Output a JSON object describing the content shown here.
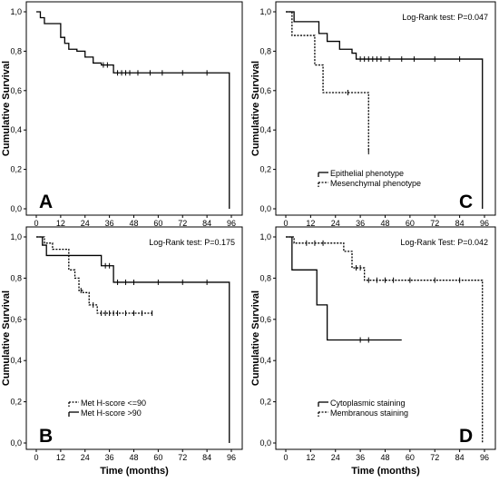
{
  "chart_data": [
    {
      "panel": "A",
      "type": "line",
      "title": "",
      "xlabel": "Time (months)",
      "ylabel": "Cumulative Survival",
      "xlim": [
        0,
        96
      ],
      "ylim": [
        0,
        1
      ],
      "x_ticks": [
        0,
        12,
        24,
        36,
        48,
        60,
        72,
        84,
        96
      ],
      "y_ticks": [
        0,
        0.2,
        0.4,
        0.6,
        0.8,
        1.0
      ],
      "y_tick_labels": [
        "0,0",
        "0,2",
        "0,4",
        "0,6",
        "0,8",
        "1,0"
      ],
      "annotation": "",
      "legend": [],
      "series": [
        {
          "dash": "solid",
          "x": [
            0,
            2,
            4,
            6,
            12,
            14,
            16,
            20,
            24,
            28,
            32,
            34,
            38,
            95,
            95
          ],
          "y": [
            1.0,
            0.97,
            0.94,
            0.94,
            0.87,
            0.84,
            0.81,
            0.8,
            0.77,
            0.74,
            0.73,
            0.73,
            0.69,
            0.69,
            0.0
          ],
          "censored": [
            {
              "x": 33,
              "y": 0.73
            },
            {
              "x": 35,
              "y": 0.73
            },
            {
              "x": 40,
              "y": 0.69
            },
            {
              "x": 42,
              "y": 0.69
            },
            {
              "x": 44,
              "y": 0.69
            },
            {
              "x": 46,
              "y": 0.69
            },
            {
              "x": 50,
              "y": 0.69
            },
            {
              "x": 56,
              "y": 0.69
            },
            {
              "x": 62,
              "y": 0.69
            },
            {
              "x": 72,
              "y": 0.69
            },
            {
              "x": 84,
              "y": 0.69
            }
          ]
        }
      ]
    },
    {
      "panel": "C",
      "type": "line",
      "title": "",
      "xlabel": "Time (months)",
      "ylabel": "Cumulative Survival",
      "xlim": [
        0,
        96
      ],
      "ylim": [
        0,
        1
      ],
      "x_ticks": [
        0,
        12,
        24,
        36,
        48,
        60,
        72,
        84,
        96
      ],
      "y_ticks": [
        0,
        0.2,
        0.4,
        0.6,
        0.8,
        1.0
      ],
      "y_tick_labels": [
        "0,0",
        "0,2",
        "0,4",
        "0,6",
        "0,8",
        "1,0"
      ],
      "annotation": "Log-Rank test: P=0.047",
      "legend": [
        "Epithelial phenotype",
        "Mesenchymal phenotype"
      ],
      "series": [
        {
          "name": "Epithelial phenotype",
          "dash": "solid",
          "x": [
            0,
            4,
            8,
            16,
            20,
            26,
            32,
            34,
            95,
            95
          ],
          "y": [
            1.0,
            0.95,
            0.95,
            0.89,
            0.85,
            0.81,
            0.79,
            0.76,
            0.76,
            0.0
          ],
          "censored": [
            {
              "x": 36,
              "y": 0.76
            },
            {
              "x": 38,
              "y": 0.76
            },
            {
              "x": 40,
              "y": 0.76
            },
            {
              "x": 42,
              "y": 0.76
            },
            {
              "x": 44,
              "y": 0.76
            },
            {
              "x": 46,
              "y": 0.76
            },
            {
              "x": 50,
              "y": 0.76
            },
            {
              "x": 56,
              "y": 0.76
            },
            {
              "x": 62,
              "y": 0.76
            },
            {
              "x": 72,
              "y": 0.76
            },
            {
              "x": 84,
              "y": 0.76
            }
          ]
        },
        {
          "name": "Mesenchymal phenotype",
          "dash": "dotted",
          "x": [
            0,
            3,
            14,
            18,
            40,
            40
          ],
          "y": [
            1.0,
            0.88,
            0.73,
            0.59,
            0.59,
            0.29
          ],
          "censored": [
            {
              "x": 30,
              "y": 0.59
            },
            {
              "x": 40,
              "y": 0.29
            }
          ]
        }
      ]
    },
    {
      "panel": "B",
      "type": "line",
      "title": "",
      "xlabel": "Time (months)",
      "ylabel": "Cumulative Survival",
      "xlim": [
        0,
        96
      ],
      "ylim": [
        0,
        1
      ],
      "x_ticks": [
        0,
        12,
        24,
        36,
        48,
        60,
        72,
        84,
        96
      ],
      "y_ticks": [
        0,
        0.2,
        0.4,
        0.6,
        0.8,
        1.0
      ],
      "y_tick_labels": [
        "0,0",
        "0,2",
        "0,4",
        "0,6",
        "0,8",
        "1,0"
      ],
      "annotation": "Log-Rank test: P=0.175",
      "legend": [
        "Met H-score <=90",
        "Met H-score >90"
      ],
      "series": [
        {
          "name": "Met H-score <=90",
          "dash": "dotted",
          "x": [
            0,
            4,
            8,
            16,
            19,
            21,
            23,
            26,
            30,
            57
          ],
          "y": [
            1.0,
            0.97,
            0.94,
            0.84,
            0.8,
            0.74,
            0.73,
            0.67,
            0.63,
            0.63
          ],
          "censored": [
            {
              "x": 22,
              "y": 0.74
            },
            {
              "x": 28,
              "y": 0.67
            },
            {
              "x": 32,
              "y": 0.63
            },
            {
              "x": 34,
              "y": 0.63
            },
            {
              "x": 36,
              "y": 0.63
            },
            {
              "x": 38,
              "y": 0.63
            },
            {
              "x": 40,
              "y": 0.63
            },
            {
              "x": 44,
              "y": 0.63
            },
            {
              "x": 48,
              "y": 0.63
            },
            {
              "x": 52,
              "y": 0.63
            },
            {
              "x": 57,
              "y": 0.63
            }
          ]
        },
        {
          "name": "Met H-score >90",
          "dash": "solid",
          "x": [
            0,
            3,
            5,
            32,
            38,
            95,
            95
          ],
          "y": [
            1.0,
            0.96,
            0.91,
            0.86,
            0.78,
            0.78,
            0.0
          ],
          "censored": [
            {
              "x": 34,
              "y": 0.86
            },
            {
              "x": 36,
              "y": 0.86
            },
            {
              "x": 40,
              "y": 0.78
            },
            {
              "x": 44,
              "y": 0.78
            },
            {
              "x": 48,
              "y": 0.78
            },
            {
              "x": 60,
              "y": 0.78
            },
            {
              "x": 72,
              "y": 0.78
            },
            {
              "x": 84,
              "y": 0.78
            }
          ]
        }
      ]
    },
    {
      "panel": "D",
      "type": "line",
      "title": "",
      "xlabel": "Time (months)",
      "ylabel": "Cumulative Survival",
      "xlim": [
        0,
        96
      ],
      "ylim": [
        0,
        1
      ],
      "x_ticks": [
        0,
        12,
        24,
        36,
        48,
        60,
        72,
        84,
        96
      ],
      "y_ticks": [
        0,
        0.2,
        0.4,
        0.6,
        0.8,
        1.0
      ],
      "y_tick_labels": [
        "0,0",
        "0,2",
        "0,4",
        "0,6",
        "0,8",
        "1,0"
      ],
      "annotation": "Log-Rank Test: P=0.042",
      "legend": [
        "Cytoplasmic staining",
        "Membranous staining"
      ],
      "series": [
        {
          "name": "Cytoplasmic staining",
          "dash": "solid",
          "x": [
            0,
            3,
            15,
            20,
            56
          ],
          "y": [
            1.0,
            0.84,
            0.67,
            0.5,
            0.5
          ],
          "censored": [
            {
              "x": 36,
              "y": 0.5
            },
            {
              "x": 40,
              "y": 0.5
            }
          ]
        },
        {
          "name": "Membranous staining",
          "dash": "dotted",
          "x": [
            0,
            4,
            28,
            32,
            38,
            95,
            95
          ],
          "y": [
            1.0,
            0.97,
            0.93,
            0.85,
            0.79,
            0.79,
            0.0
          ],
          "censored": [
            {
              "x": 10,
              "y": 0.97
            },
            {
              "x": 14,
              "y": 0.97
            },
            {
              "x": 18,
              "y": 0.97
            },
            {
              "x": 34,
              "y": 0.85
            },
            {
              "x": 36,
              "y": 0.85
            },
            {
              "x": 40,
              "y": 0.79
            },
            {
              "x": 44,
              "y": 0.79
            },
            {
              "x": 48,
              "y": 0.79
            },
            {
              "x": 52,
              "y": 0.79
            },
            {
              "x": 60,
              "y": 0.79
            },
            {
              "x": 72,
              "y": 0.79
            },
            {
              "x": 84,
              "y": 0.79
            }
          ]
        }
      ]
    }
  ]
}
